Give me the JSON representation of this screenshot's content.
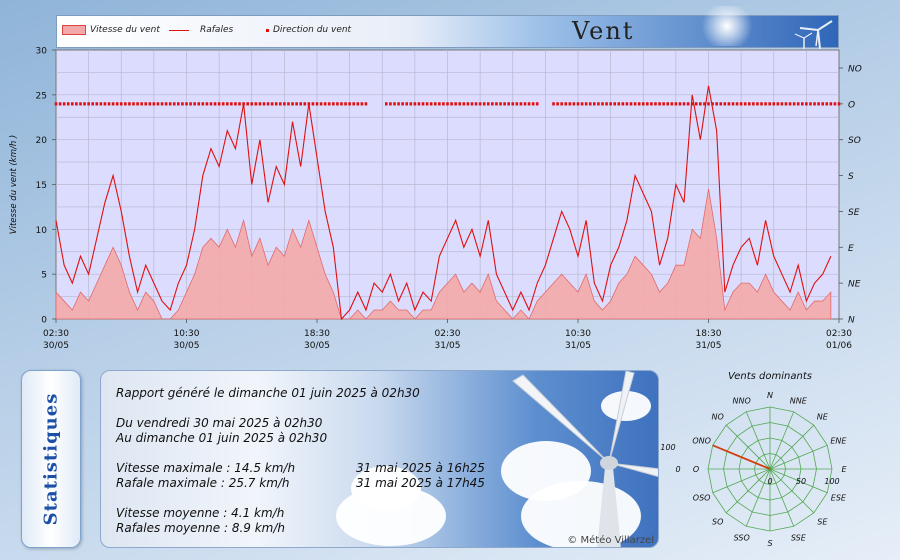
{
  "header": {
    "title": "Vent",
    "legend": {
      "area": "Vitesse du vent",
      "line": "Rafales",
      "points": "Direction du vent"
    }
  },
  "colors": {
    "area_fill": "#f4aaaa",
    "line": "#e01010",
    "plot_bg": "#dcdcff",
    "grid": "#b8b8d0",
    "title_blue": "#1c4fa6",
    "rose_grid": "#52a852",
    "rose_vector": "#d04010"
  },
  "chart_data": [
    {
      "type": "line",
      "y_left": {
        "label": "Vitesse du vent  (km/h )",
        "range": [
          0,
          30
        ],
        "ticks": [
          "0",
          "5",
          "10",
          "15",
          "20",
          "25",
          "30"
        ]
      },
      "y_right": {
        "label": "",
        "ticks": [
          "N",
          "NE",
          "E",
          "SE",
          "S",
          "SO",
          "O",
          "NO"
        ]
      },
      "x": {
        "label": "",
        "ticks": [
          {
            "time": "02:30",
            "date": "30/05"
          },
          {
            "time": "10:30",
            "date": "30/05"
          },
          {
            "time": "18:30",
            "date": "30/05"
          },
          {
            "time": "02:30",
            "date": "31/05"
          },
          {
            "time": "10:30",
            "date": "31/05"
          },
          {
            "time": "18:30",
            "date": "31/05"
          },
          {
            "time": "02:30",
            "date": "01/06"
          }
        ],
        "range_hours": [
          0,
          48
        ]
      },
      "grid": true,
      "series": [
        {
          "name": "Rafales",
          "kind": "line",
          "x_hours": [
            0,
            0.5,
            1,
            1.5,
            2,
            2.5,
            3,
            3.5,
            4,
            4.5,
            5,
            5.5,
            6,
            6.5,
            7,
            7.5,
            8,
            8.5,
            9,
            9.5,
            10,
            10.5,
            11,
            11.5,
            12,
            12.5,
            13,
            13.5,
            14,
            14.5,
            15,
            15.5,
            16,
            16.5,
            17,
            17.5,
            18,
            18.5,
            19,
            19.5,
            20,
            20.5,
            21,
            21.5,
            22,
            22.5,
            23,
            23.5,
            24,
            24.5,
            25,
            25.5,
            26,
            26.5,
            27,
            27.5,
            28,
            28.5,
            29,
            29.5,
            30,
            30.5,
            31,
            31.5,
            32,
            32.5,
            33,
            33.5,
            34,
            34.5,
            35,
            35.5,
            36,
            36.5,
            37,
            37.5,
            38,
            38.5,
            39,
            39.5,
            40,
            40.5,
            41,
            41.5,
            42,
            42.5,
            43,
            43.5,
            44,
            44.5,
            45,
            45.5,
            46,
            46.5,
            47,
            47.5
          ],
          "values": [
            11,
            6,
            4,
            7,
            5,
            9,
            13,
            16,
            12,
            7,
            3,
            6,
            4,
            2,
            1,
            4,
            6,
            10,
            16,
            19,
            17,
            21,
            19,
            24,
            15,
            20,
            13,
            17,
            15,
            22,
            17,
            24,
            18,
            12,
            8,
            0,
            1,
            3,
            1,
            4,
            3,
            5,
            2,
            4,
            1,
            3,
            2,
            7,
            9,
            11,
            8,
            10,
            7,
            11,
            5,
            3,
            1,
            3,
            1,
            4,
            6,
            9,
            12,
            10,
            7,
            11,
            4,
            2,
            6,
            8,
            11,
            16,
            14,
            12,
            6,
            9,
            15,
            13,
            25,
            20,
            26,
            21,
            3,
            6,
            8,
            9,
            6,
            11,
            7,
            5,
            3,
            6,
            2,
            4,
            5,
            7
          ]
        },
        {
          "name": "Vitesse du vent",
          "kind": "area",
          "x_hours": [
            0,
            0.5,
            1,
            1.5,
            2,
            2.5,
            3,
            3.5,
            4,
            4.5,
            5,
            5.5,
            6,
            6.5,
            7,
            7.5,
            8,
            8.5,
            9,
            9.5,
            10,
            10.5,
            11,
            11.5,
            12,
            12.5,
            13,
            13.5,
            14,
            14.5,
            15,
            15.5,
            16,
            16.5,
            17,
            17.5,
            18,
            18.5,
            19,
            19.5,
            20,
            20.5,
            21,
            21.5,
            22,
            22.5,
            23,
            23.5,
            24,
            24.5,
            25,
            25.5,
            26,
            26.5,
            27,
            27.5,
            28,
            28.5,
            29,
            29.5,
            30,
            30.5,
            31,
            31.5,
            32,
            32.5,
            33,
            33.5,
            34,
            34.5,
            35,
            35.5,
            36,
            36.5,
            37,
            37.5,
            38,
            38.5,
            39,
            39.5,
            40,
            40.5,
            41,
            41.5,
            42,
            42.5,
            43,
            43.5,
            44,
            44.5,
            45,
            45.5,
            46,
            46.5,
            47,
            47.5
          ],
          "values": [
            3,
            2,
            1,
            3,
            2,
            4,
            6,
            8,
            6,
            3,
            1,
            3,
            2,
            0,
            0,
            1,
            3,
            5,
            8,
            9,
            8,
            10,
            8,
            11,
            7,
            9,
            6,
            8,
            7,
            10,
            8,
            11,
            8,
            5,
            3,
            0,
            0,
            1,
            0,
            1,
            1,
            2,
            1,
            1,
            0,
            1,
            1,
            3,
            4,
            5,
            3,
            4,
            3,
            5,
            2,
            1,
            0,
            1,
            0,
            2,
            3,
            4,
            5,
            4,
            3,
            5,
            2,
            1,
            2,
            4,
            5,
            7,
            6,
            5,
            3,
            4,
            6,
            6,
            10,
            9,
            14.5,
            9,
            1,
            3,
            4,
            4,
            3,
            5,
            3,
            2,
            1,
            3,
            1,
            2,
            2,
            3
          ]
        },
        {
          "name": "Direction du vent",
          "kind": "points",
          "axis": "right",
          "value": "O",
          "gaps_hours": [
            [
              19.2,
              20.0
            ],
            [
              29.7,
              30.3
            ]
          ]
        }
      ]
    },
    {
      "type": "polar",
      "title": "Vents dominants",
      "directions": [
        "N",
        "NNE",
        "NE",
        "ENE",
        "E",
        "ESE",
        "SE",
        "SSE",
        "S",
        "SSO",
        "SO",
        "OSO",
        "O",
        "ONO",
        "NO",
        "NNO"
      ],
      "radial_ticks": [
        "0",
        "50",
        "100"
      ],
      "left_ticks": [
        "0",
        "100"
      ],
      "range": [
        0,
        100
      ],
      "dominant": {
        "direction": "ONO",
        "value": 100
      }
    }
  ],
  "report": {
    "generated": "Rapport généré le dimanche 01 juin 2025 à 02h30",
    "period_from": "Du vendredi 30 mai 2025 à 02h30",
    "period_to": "Au dimanche 01 juin 2025 à 02h30",
    "vmax_label": "Vitesse maximale : 14.5 km/h",
    "vmax_date": "31 mai 2025 à 16h25",
    "rmax_label": "Rafale maximale : 25.7 km/h",
    "rmax_date": "31 mai 2025 à 17h45",
    "vmoy_label": "Vitesse moyenne : 4.1 km/h",
    "rmoy_label": "Rafales moyenne : 8.9 km/h"
  },
  "statistics_title": "Statistiques",
  "copyright": "© Météo Villarzel"
}
